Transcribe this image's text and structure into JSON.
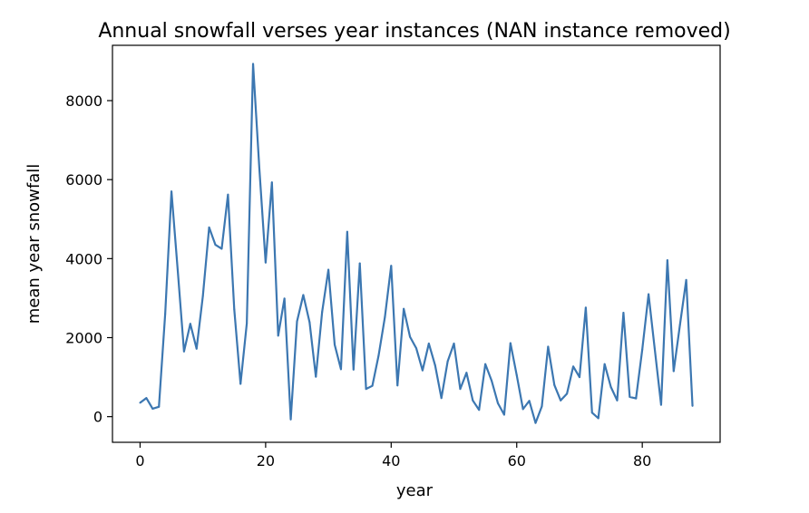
{
  "chart_data": {
    "type": "line",
    "title": "Annual snowfall verses year instances (NAN instance removed)",
    "xlabel": "year",
    "ylabel": "mean year snowfall",
    "xlim": [
      -4.4,
      92.4
    ],
    "ylim": [
      -650,
      9400
    ],
    "xticks": [
      0,
      20,
      40,
      60,
      80
    ],
    "yticks": [
      0,
      2000,
      4000,
      6000,
      8000
    ],
    "grid": false,
    "series": [
      {
        "color": "#3c77b1",
        "x": [
          0,
          1,
          2,
          3,
          4,
          5,
          6,
          7,
          8,
          9,
          10,
          11,
          12,
          13,
          14,
          15,
          16,
          17,
          18,
          19,
          20,
          21,
          22,
          23,
          24,
          25,
          26,
          27,
          28,
          29,
          30,
          31,
          32,
          33,
          34,
          35,
          36,
          37,
          38,
          39,
          40,
          41,
          42,
          43,
          44,
          45,
          46,
          47,
          48,
          49,
          50,
          51,
          52,
          53,
          54,
          55,
          56,
          57,
          58,
          59,
          60,
          61,
          62,
          63,
          64,
          65,
          66,
          67,
          68,
          69,
          70,
          71,
          72,
          73,
          74,
          75,
          76,
          77,
          78,
          79,
          80,
          81,
          82,
          83,
          84,
          85,
          86,
          87,
          88
        ],
        "y": [
          350,
          470,
          200,
          250,
          2600,
          5700,
          3700,
          1650,
          2350,
          1720,
          3050,
          4790,
          4350,
          4250,
          5620,
          2720,
          830,
          2360,
          8930,
          6280,
          3900,
          5930,
          2050,
          2990,
          -70,
          2410,
          3080,
          2390,
          1010,
          2650,
          3720,
          1820,
          1200,
          4680,
          1190,
          3880,
          700,
          780,
          1550,
          2520,
          3820,
          790,
          2730,
          2020,
          1730,
          1170,
          1850,
          1300,
          470,
          1400,
          1850,
          700,
          1110,
          410,
          170,
          1330,
          910,
          340,
          50,
          1860,
          1050,
          190,
          400,
          -160,
          260,
          1770,
          800,
          410,
          580,
          1270,
          1000,
          2760,
          100,
          -40,
          1330,
          750,
          410,
          2630,
          500,
          460,
          1700,
          3100,
          1690,
          300,
          3960,
          1150,
          2320,
          3460,
          270
        ]
      }
    ]
  }
}
